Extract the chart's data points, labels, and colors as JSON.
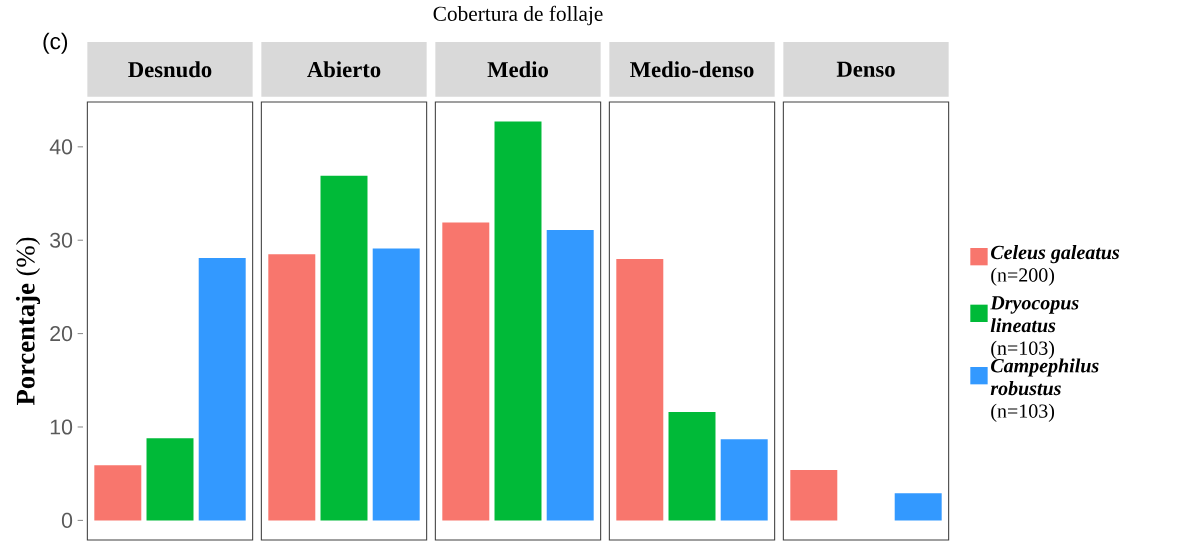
{
  "chart_data": {
    "type": "bar",
    "title": "Cobertura de follaje",
    "ylabel": "**Porcentaje** (%)",
    "annotations": [
      "(c)"
    ],
    "categories": [
      "Desnudo",
      "Abierto",
      "Medio",
      "Medio-denso",
      "Denso"
    ],
    "series": [
      {
        "name": "**Celeus galeatus** (n=200)",
        "color": "#f8766d",
        "values": [
          5.9,
          28.5,
          31.9,
          28.0,
          5.4
        ]
      },
      {
        "name": "**Dryocopus lineatus** (n=103)",
        "color": "#00ba38",
        "values": [
          8.8,
          36.9,
          42.7,
          11.6,
          0
        ]
      },
      {
        "name": "**Campephilus robustus** (n=103)",
        "color": "#3399ff",
        "values": [
          28.1,
          29.1,
          31.1,
          8.7,
          2.9
        ]
      }
    ],
    "ylim": [
      -2.1,
      44.8
    ],
    "yticks": [
      0,
      10,
      20,
      30,
      40
    ],
    "legend": "right"
  }
}
